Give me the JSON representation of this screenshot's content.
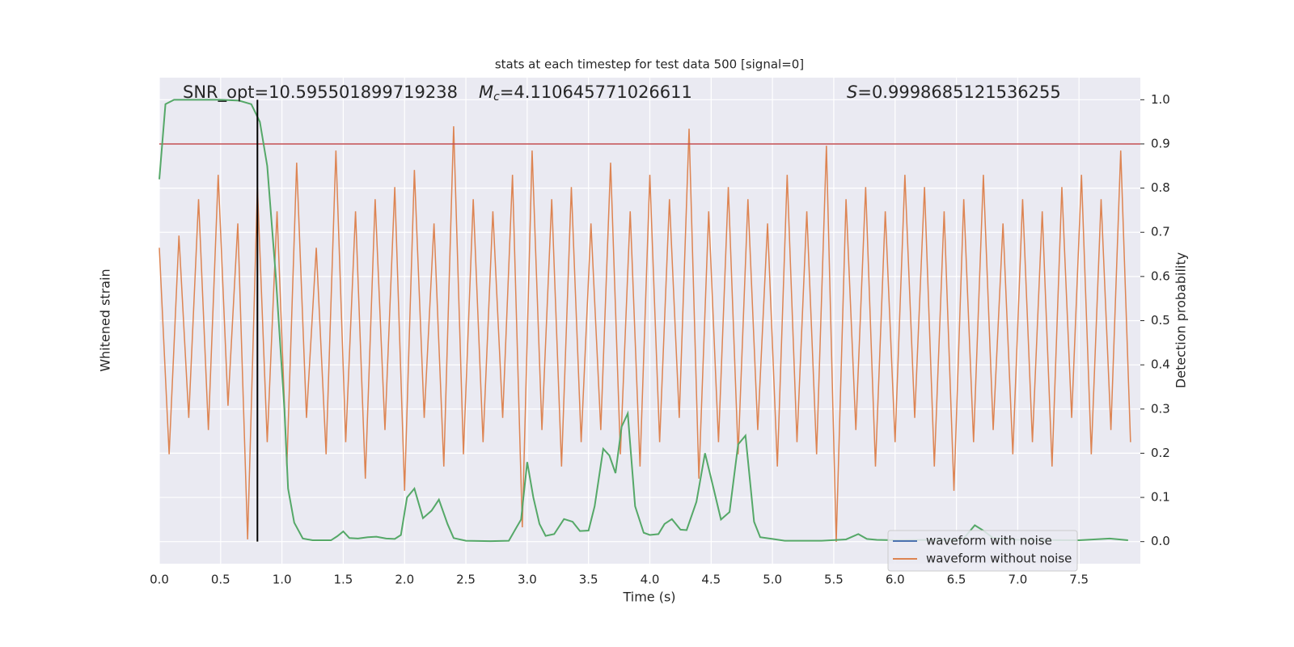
{
  "chart_data": {
    "type": "line",
    "title": "stats at each timestep for test data 500 [signal=0]",
    "xlabel": "Time (s)",
    "ylabel": "Whitened strain",
    "y2label": "Detection probability",
    "annotations": {
      "snr": "SNR_opt=10.595501899719238",
      "mc": {
        "symbol": "M",
        "subscript": "c",
        "text": "=4.110645771026611"
      },
      "s": {
        "symbol": "S",
        "text": "=0.9998685121536255"
      }
    },
    "xlim": [
      0,
      8
    ],
    "xticks": [
      {
        "value": 0,
        "label": "0.0"
      },
      0.5,
      {
        "value": 1,
        "label": "1.0"
      },
      1.5,
      {
        "value": 2,
        "label": "2.0"
      },
      2.5,
      {
        "value": 3,
        "label": "3.0"
      },
      3.5,
      {
        "value": 4,
        "label": "4.0"
      },
      4.5,
      {
        "value": 5,
        "label": "5.0"
      },
      5.5,
      {
        "value": 6,
        "label": "6.0"
      },
      6.5,
      {
        "value": 7,
        "label": "7.0"
      },
      7.5
    ],
    "ylim": [
      -1,
      1
    ],
    "y2lim": [
      -0.05,
      1.05
    ],
    "y2ticks": [
      {
        "value": 0,
        "label": "0.0"
      },
      0.1,
      0.2,
      0.3,
      0.4,
      0.5,
      0.6,
      0.7,
      0.8,
      0.9,
      {
        "value": 1,
        "label": "1.0"
      }
    ],
    "grid": true,
    "legend": "lower right",
    "x": [
      0,
      0.08,
      0.16,
      0.24,
      0.32,
      0.4,
      0.48,
      0.56,
      0.64,
      0.72,
      0.8,
      0.88,
      0.96,
      1.04,
      1.12,
      1.2,
      1.28,
      1.36,
      1.44,
      1.52,
      1.6,
      1.68,
      1.76,
      1.84,
      1.92,
      2,
      2.08,
      2.16,
      2.24,
      2.32,
      2.4,
      2.48,
      2.56,
      2.64,
      2.72,
      2.8,
      2.88,
      2.96,
      3.04,
      3.12,
      3.2,
      3.28,
      3.36,
      3.44,
      3.52,
      3.6,
      3.68,
      3.76,
      3.84,
      3.92,
      4,
      4.08,
      4.16,
      4.24,
      4.32,
      4.4,
      4.48,
      4.56,
      4.64,
      4.72,
      4.8,
      4.88,
      4.96,
      5.04,
      5.12,
      5.2,
      5.28,
      5.36,
      5.44,
      5.52,
      5.6,
      5.68,
      5.76,
      5.84,
      5.92,
      6,
      6.08,
      6.16,
      6.24,
      6.32,
      6.4,
      6.48,
      6.56,
      6.64,
      6.72,
      6.8,
      6.88,
      6.96,
      7.04,
      7.12,
      7.2,
      7.28,
      7.36,
      7.44,
      7.52,
      7.6,
      7.68,
      7.76,
      7.84,
      7.92
    ],
    "series": [
      {
        "name": "waveform with noise",
        "color": "#4c72b0",
        "values": [
          null,
          null,
          null,
          null,
          null,
          null,
          null,
          null,
          null,
          null,
          null,
          null,
          null,
          null,
          null,
          null,
          null,
          null,
          null,
          null,
          null,
          null,
          null,
          null,
          null,
          null,
          null,
          null,
          null,
          null,
          null,
          null,
          null,
          null,
          null,
          null,
          null,
          null,
          null,
          null,
          null,
          null,
          null,
          null,
          null,
          null,
          null,
          null,
          null,
          null,
          null,
          null,
          null,
          null,
          null,
          null,
          null,
          null,
          null,
          null,
          null,
          null,
          null,
          null,
          null,
          null,
          null,
          null,
          null,
          null,
          null,
          null,
          null,
          null,
          null,
          null,
          null,
          null,
          null,
          null,
          null,
          null,
          null,
          null,
          null,
          null,
          null,
          null,
          null,
          null,
          null,
          null,
          null,
          null,
          null,
          null,
          null,
          null,
          null,
          null
        ]
      },
      {
        "name": "waveform without noise",
        "color": "#dd8452",
        "values": [
          0.3,
          -0.55,
          0.35,
          -0.4,
          0.5,
          -0.45,
          0.6,
          -0.35,
          0.4,
          -0.9,
          0.55,
          -0.5,
          0.45,
          -0.6,
          0.65,
          -0.4,
          0.3,
          -0.55,
          0.7,
          -0.5,
          0.45,
          -0.65,
          0.5,
          -0.45,
          0.55,
          -0.7,
          0.62,
          -0.4,
          0.4,
          -0.6,
          0.8,
          -0.55,
          0.5,
          -0.5,
          0.45,
          -0.4,
          0.6,
          -0.85,
          0.7,
          -0.45,
          0.5,
          -0.6,
          0.55,
          -0.5,
          0.4,
          -0.45,
          0.65,
          -0.55,
          0.45,
          -0.6,
          0.6,
          -0.5,
          0.5,
          -0.4,
          0.79,
          -0.65,
          0.45,
          -0.5,
          0.55,
          -0.55,
          0.5,
          -0.45,
          0.4,
          -0.6,
          0.6,
          -0.5,
          0.45,
          -0.55,
          0.72,
          -0.91,
          0.5,
          -0.45,
          0.55,
          -0.6,
          0.45,
          -0.5,
          0.6,
          -0.4,
          0.55,
          -0.6,
          0.45,
          -0.7,
          0.5,
          -0.5,
          0.6,
          -0.45,
          0.4,
          -0.55,
          0.5,
          -0.5,
          0.45,
          -0.6,
          0.55,
          -0.4,
          0.6,
          -0.55,
          0.5,
          -0.45,
          0.7,
          -0.5
        ]
      }
    ],
    "detection": {
      "color": "#55a868",
      "axis": "y2",
      "x": [
        0,
        0.05,
        0.12,
        0.3,
        0.5,
        0.65,
        0.75,
        0.82,
        0.88,
        0.95,
        1.02,
        1.05,
        1.1,
        1.17,
        1.25,
        1.4,
        1.45,
        1.5,
        1.55,
        1.62,
        1.7,
        1.77,
        1.85,
        1.92,
        1.97,
        2.02,
        2.08,
        2.15,
        2.22,
        2.28,
        2.35,
        2.4,
        2.5,
        2.7,
        2.85,
        2.95,
        3.0,
        3.05,
        3.1,
        3.15,
        3.22,
        3.3,
        3.37,
        3.43,
        3.5,
        3.55,
        3.62,
        3.67,
        3.72,
        3.77,
        3.82,
        3.88,
        3.95,
        4.0,
        4.07,
        4.12,
        4.18,
        4.25,
        4.3,
        4.38,
        4.45,
        4.52,
        4.58,
        4.65,
        4.72,
        4.78,
        4.85,
        4.9,
        5.0,
        5.1,
        5.4,
        5.6,
        5.7,
        5.77,
        5.85,
        6.0,
        6.3,
        6.55,
        6.65,
        6.72,
        6.8,
        7.0,
        7.5,
        7.62,
        7.75,
        7.9
      ],
      "values": [
        0.82,
        0.99,
        1.0,
        1.0,
        1.0,
        0.998,
        0.99,
        0.95,
        0.85,
        0.6,
        0.3,
        0.12,
        0.043,
        0.007,
        0.003,
        0.003,
        0.012,
        0.023,
        0.008,
        0.007,
        0.01,
        0.011,
        0.007,
        0.006,
        0.015,
        0.1,
        0.12,
        0.053,
        0.07,
        0.095,
        0.04,
        0.008,
        0.002,
        0.001,
        0.002,
        0.05,
        0.18,
        0.1,
        0.04,
        0.013,
        0.017,
        0.051,
        0.045,
        0.024,
        0.025,
        0.08,
        0.21,
        0.195,
        0.155,
        0.26,
        0.29,
        0.08,
        0.02,
        0.015,
        0.017,
        0.04,
        0.051,
        0.027,
        0.026,
        0.09,
        0.2,
        0.12,
        0.05,
        0.067,
        0.22,
        0.24,
        0.045,
        0.01,
        0.006,
        0.002,
        0.002,
        0.005,
        0.017,
        0.006,
        0.004,
        0.003,
        0.004,
        0.004,
        0.037,
        0.025,
        0.008,
        0.004,
        0.003,
        0.005,
        0.007,
        0.003
      ]
    },
    "threshold": {
      "value": 0.9,
      "color": "#c44e52"
    },
    "marker_x": 0.8
  }
}
